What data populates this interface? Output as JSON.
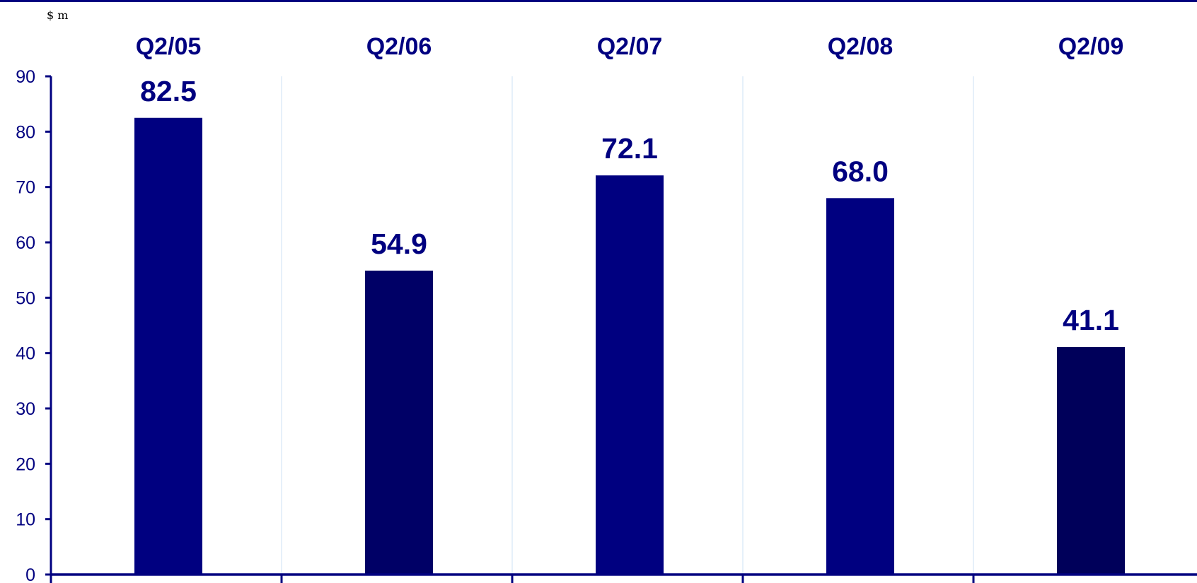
{
  "chart_data": {
    "type": "bar",
    "unit_label": "$ m",
    "categories": [
      "Q2/05",
      "Q2/06",
      "Q2/07",
      "Q2/08",
      "Q2/09"
    ],
    "values": [
      82.5,
      54.9,
      72.1,
      68.0,
      41.1
    ],
    "data_labels": [
      "82.5",
      "54.9",
      "72.1",
      "68.0",
      "41.1"
    ],
    "yticks": [
      0,
      10,
      20,
      30,
      40,
      50,
      60,
      70,
      80,
      90
    ],
    "ylim": [
      0,
      90
    ],
    "category_axis_position": "top",
    "grid": "vertical separators",
    "colors": {
      "bars": [
        "#000080",
        "#000066",
        "#000080",
        "#000080",
        "#00005a"
      ],
      "axis": "#000080",
      "grid": "#d6e6f7",
      "top_rule": "#000080",
      "text": "#000080"
    }
  }
}
